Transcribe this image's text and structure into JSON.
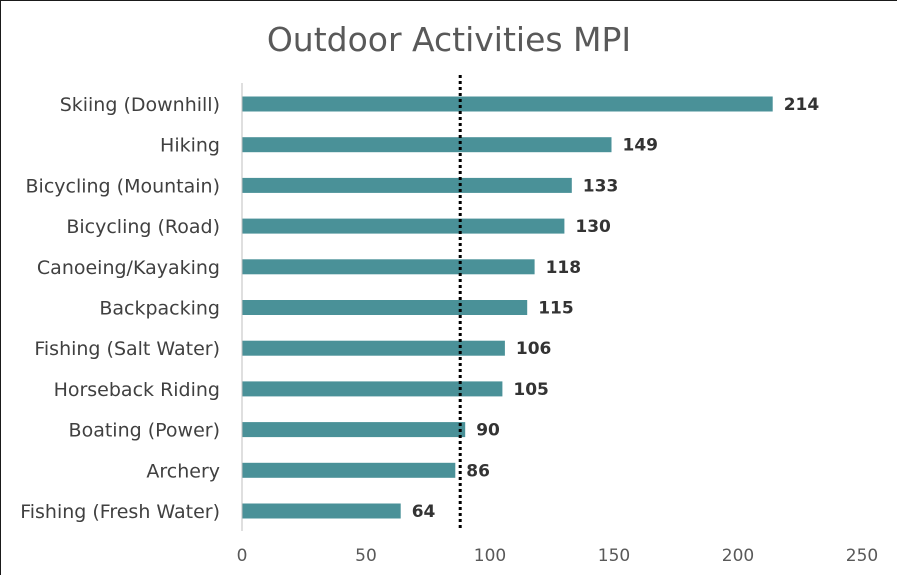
{
  "chart_data": {
    "type": "bar",
    "orientation": "horizontal",
    "title": "Outdoor Activities MPI",
    "xlabel": "",
    "ylabel": "",
    "categories": [
      "Skiing (Downhill)",
      "Hiking",
      "Bicycling (Mountain)",
      "Bicycling (Road)",
      "Canoeing/Kayaking",
      "Backpacking",
      "Fishing (Salt Water)",
      "Horseback Riding",
      "Boating (Power)",
      "Archery",
      "Fishing (Fresh Water)"
    ],
    "values": [
      214,
      149,
      133,
      130,
      118,
      115,
      106,
      105,
      90,
      86,
      64
    ],
    "data_labels": [
      "214",
      "149",
      "133",
      "130",
      "118",
      "115",
      "106",
      "105",
      "90",
      "86",
      "64"
    ],
    "xlim": [
      0,
      250
    ],
    "xticks": [
      0,
      50,
      100,
      150,
      200,
      250
    ],
    "xtick_labels": [
      "0",
      "50",
      "100",
      "150",
      "200",
      "250"
    ],
    "reference_line": {
      "value": 88,
      "style": "dotted",
      "color": "#000000"
    },
    "bar_color": "#4a9198",
    "grid": false,
    "legend": "none"
  }
}
